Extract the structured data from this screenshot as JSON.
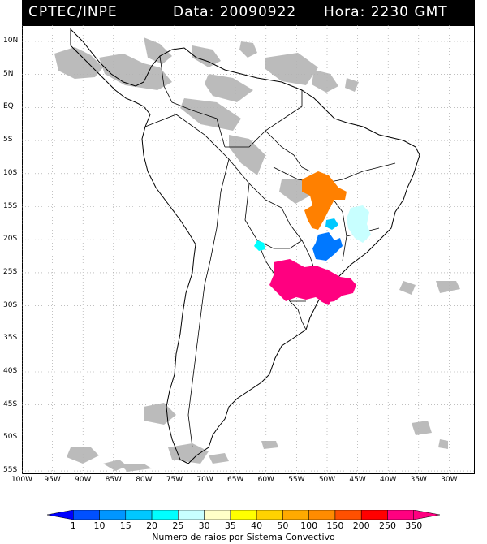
{
  "header": {
    "source": "CPTEC/INPE",
    "date_text": "Data: 20090922",
    "time_text": "Hora: 2230 GMT"
  },
  "lat_labels": [
    "10N",
    "5N",
    "EQ",
    "5S",
    "10S",
    "15S",
    "20S",
    "25S",
    "30S",
    "35S",
    "40S",
    "45S",
    "50S",
    "55S"
  ],
  "lon_labels": [
    "100W",
    "95W",
    "90W",
    "85W",
    "80W",
    "75W",
    "70W",
    "65W",
    "60W",
    "55W",
    "50W",
    "45W",
    "40W",
    "35W",
    "30W"
  ],
  "legend": {
    "values": [
      "1",
      "10",
      "15",
      "20",
      "25",
      "30",
      "35",
      "40",
      "50",
      "100",
      "150",
      "200",
      "250",
      "350"
    ],
    "colors": [
      "#0000ff",
      "#0050ff",
      "#0096ff",
      "#00c8ff",
      "#00ffff",
      "#c8ffff",
      "#ffffc8",
      "#ffff00",
      "#ffd200",
      "#ffaa00",
      "#ff8c00",
      "#ff5000",
      "#ff0000",
      "#ff0080"
    ],
    "caption": "Numero de raios por Sistema Convectivo"
  },
  "map": {
    "extent": {
      "lon_min": -100,
      "lon_max": -27,
      "lat_min": -56,
      "lat_max": 13
    },
    "cloud_color": "#b4b4b4",
    "convective_systems": [
      {
        "name": "orange-system-central-brazil",
        "color": "#ff8000"
      },
      {
        "name": "light-cyan-system-minas",
        "color": "#c8ffff"
      },
      {
        "name": "cyan-system-paraguay",
        "color": "#00ffff"
      },
      {
        "name": "blue-system-sao-paulo",
        "color": "#0078ff"
      },
      {
        "name": "magenta-system-south",
        "color": "#ff0080"
      }
    ]
  }
}
